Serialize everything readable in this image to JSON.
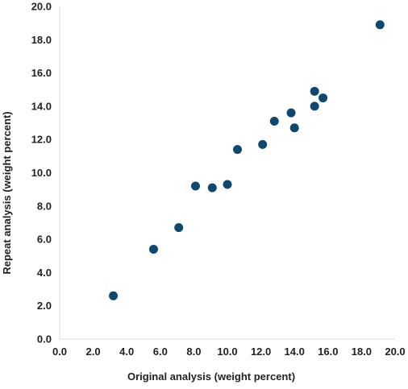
{
  "chart_data": {
    "type": "scatter",
    "title": "",
    "xlabel": "Original analysis (weight percent)",
    "ylabel": "Repeat analysis (weight percent)",
    "xlim": [
      0,
      20
    ],
    "ylim": [
      0,
      20
    ],
    "x_ticks": [
      "0.0",
      "2.0",
      "4.0",
      "6.0",
      "8.0",
      "10.0",
      "12.0",
      "14.0",
      "16.0",
      "18.0",
      "20.0"
    ],
    "y_ticks": [
      "0.0",
      "2.0",
      "4.0",
      "6.0",
      "8.0",
      "10.0",
      "12.0",
      "14.0",
      "16.0",
      "18.0",
      "20.0"
    ],
    "tick_step": 2,
    "grid": false,
    "marker_color": "#0d4870",
    "axis_color": "#d9d9d9",
    "points": [
      {
        "x": 3.2,
        "y": 2.6
      },
      {
        "x": 5.6,
        "y": 5.4
      },
      {
        "x": 7.1,
        "y": 6.7
      },
      {
        "x": 8.1,
        "y": 9.2
      },
      {
        "x": 9.1,
        "y": 9.1
      },
      {
        "x": 10.0,
        "y": 9.3
      },
      {
        "x": 10.6,
        "y": 11.4
      },
      {
        "x": 12.1,
        "y": 11.7
      },
      {
        "x": 12.8,
        "y": 13.1
      },
      {
        "x": 13.8,
        "y": 13.6
      },
      {
        "x": 14.0,
        "y": 12.7
      },
      {
        "x": 15.2,
        "y": 14.9
      },
      {
        "x": 15.2,
        "y": 14.0
      },
      {
        "x": 15.7,
        "y": 14.5
      },
      {
        "x": 19.1,
        "y": 18.9
      }
    ]
  }
}
